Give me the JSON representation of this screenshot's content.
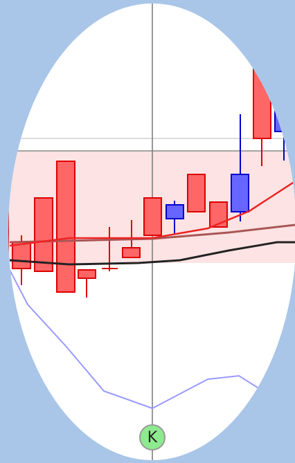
{
  "marker": {
    "label": "K"
  }
}
